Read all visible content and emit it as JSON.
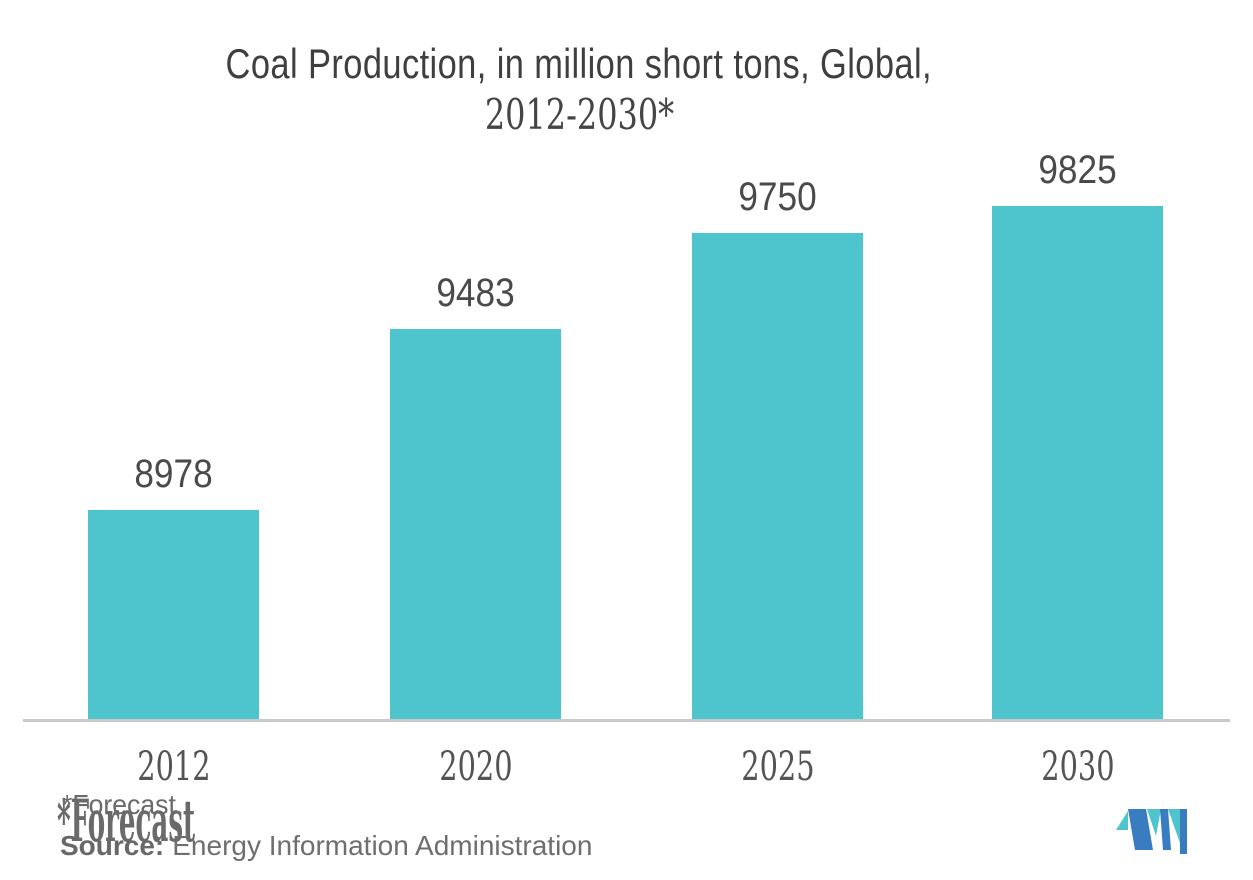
{
  "title": {
    "line1": "Coal Production, in million short tons, Global,",
    "line2": "2012-2030*"
  },
  "chart_data": {
    "type": "bar",
    "title": "Coal Production, in million short tons, Global, 2012-2030*",
    "categories": [
      "2012",
      "2020",
      "2025",
      "2030"
    ],
    "values": [
      8978,
      9483,
      9750,
      9825
    ],
    "value_labels": [
      "8978",
      "9483",
      "9750",
      "9825"
    ],
    "xlabel": "",
    "ylabel": "",
    "grid": false,
    "legend": false,
    "y_axis_shown": false,
    "ylim_effective_baseline": 8396,
    "bar_color": "#4ec4cc",
    "value_label_color": "#4a4a4a",
    "axis_label_color": "#545454",
    "axis_line_color": "#c9c9c9"
  },
  "footnote": {
    "forecast_note": "*Forecast",
    "source_label": "Source:",
    "source_text": "Energy Information Administration"
  },
  "logo": {
    "name": "Mordor Intelligence logomark",
    "blue": "#3a7cc0",
    "teal": "#4ec4cc"
  }
}
